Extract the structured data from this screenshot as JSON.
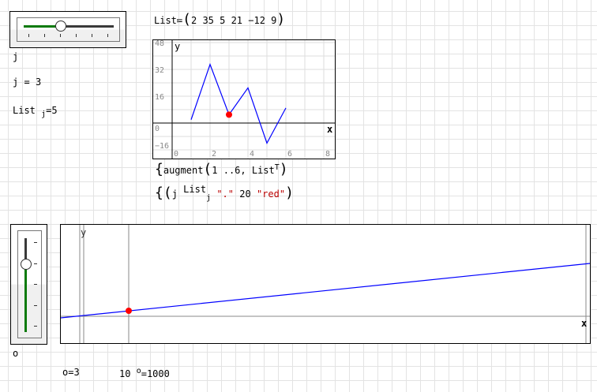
{
  "slider_j": {
    "variable": "j",
    "value": 3,
    "min": 1,
    "max": 6
  },
  "j_result": {
    "lhs": "j",
    "eq": "=",
    "value": "3"
  },
  "list_j_result": {
    "name": "List",
    "index": "j",
    "eq": "=",
    "value": "5"
  },
  "list_def": {
    "name": "List",
    "assign": "≔",
    "values": [
      "2",
      "35",
      "5",
      "21",
      "−12",
      "9"
    ]
  },
  "plot1": {
    "x_label": "x",
    "y_label": "y",
    "y_ticks": [
      "48",
      "32",
      "16",
      "0",
      "−16"
    ],
    "x_ticks": [
      "0",
      "2",
      "4",
      "6",
      "8"
    ],
    "series": [
      {
        "x": [
          1,
          2,
          3,
          4,
          5,
          6
        ],
        "y": [
          2,
          35,
          5,
          21,
          -12,
          9
        ],
        "color": "#0000ff"
      }
    ],
    "marker": {
      "x": 3,
      "y": 5,
      "color": "#ff0000"
    },
    "xlim": [
      0,
      8.5
    ],
    "ylim": [
      -16,
      50
    ]
  },
  "plot1_expr": {
    "line1": {
      "fn": "augment",
      "range": "1 ..6",
      "sep": ",",
      "arg": "List",
      "sup": "T"
    },
    "line2": {
      "a": "j",
      "b": "List",
      "b_index": "j",
      "c": "\".\"",
      "d": "20",
      "e": "\"red\""
    }
  },
  "slider_o": {
    "variable": "o",
    "value": 3,
    "min": 0,
    "max": 4
  },
  "plot2": {
    "x_label": "x",
    "y_label": "y",
    "line_color": "#0000ff",
    "marker_color": "#ff0000"
  },
  "o_result": {
    "lhs": "o",
    "eq": "=",
    "value": "3"
  },
  "pow_result": {
    "base": "10",
    "exp": "o",
    "eq": "=",
    "value": "1000"
  }
}
